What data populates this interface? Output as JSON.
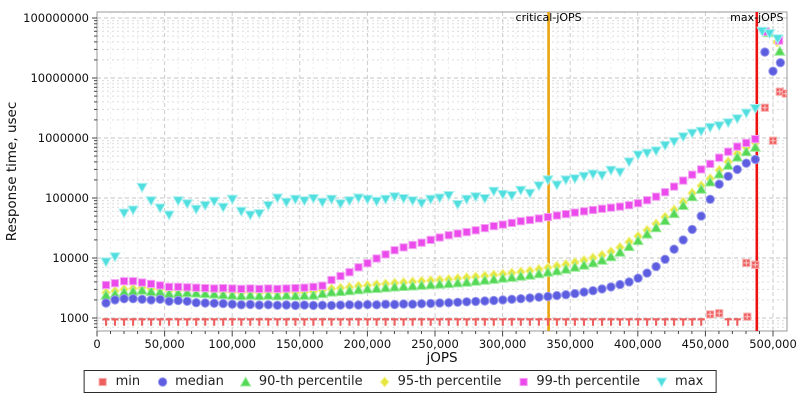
{
  "chart_data": {
    "type": "scatter",
    "title": "",
    "xlabel": "jOPS",
    "ylabel": "Response time, usec",
    "x_axis": {
      "min": 0,
      "max": 510000,
      "major_tick_step": 50000,
      "minor_tick_step": 10000,
      "tick_values": [
        0,
        50000,
        100000,
        150000,
        200000,
        250000,
        300000,
        350000,
        400000,
        450000,
        500000
      ],
      "tick_labels": [
        "0",
        "50,000",
        "100,000",
        "150,000",
        "200,000",
        "250,000",
        "300,000",
        "350,000",
        "400,000",
        "450,000",
        "500,000"
      ]
    },
    "y_axis": {
      "scale": "log",
      "min": 600,
      "max": 126000000,
      "tick_values": [
        1000,
        10000,
        100000,
        1000000,
        10000000,
        100000000
      ],
      "tick_labels": [
        "1000",
        "10000",
        "100000",
        "1000000",
        "10000000",
        "100000000"
      ]
    },
    "grid": true,
    "legend_position": "bottom",
    "annotations": [
      {
        "label": "critical-jOPS",
        "x": 334000,
        "color": "#eaa40f"
      },
      {
        "label": "max-jOPS",
        "x": 488000,
        "color": "#ee1111"
      }
    ],
    "x": [
      6670,
      13340,
      20010,
      26680,
      33350,
      40020,
      46690,
      53360,
      60030,
      66700,
      73370,
      80040,
      86710,
      93380,
      100050,
      106720,
      113390,
      120060,
      126730,
      133400,
      140070,
      146740,
      153410,
      160080,
      166750,
      173420,
      180090,
      186760,
      193430,
      200100,
      206770,
      213440,
      220110,
      226780,
      233450,
      240120,
      246790,
      253460,
      260130,
      266800,
      273470,
      280140,
      286810,
      293480,
      300150,
      306820,
      313490,
      320160,
      326830,
      333500,
      340170,
      346840,
      353510,
      360180,
      366850,
      373520,
      380190,
      386860,
      393530,
      400200,
      406870,
      413540,
      420210,
      426880,
      433550,
      440220,
      446890,
      453560,
      460230,
      466900,
      473570,
      480240,
      486910
    ],
    "series": [
      {
        "name": "min",
        "marker": "square",
        "color": "#ee5f5f",
        "edge": "#f8b0b0",
        "values": [
          950,
          950,
          950,
          950,
          950,
          950,
          950,
          950,
          950,
          950,
          950,
          950,
          950,
          950,
          950,
          950,
          950,
          950,
          950,
          950,
          950,
          950,
          950,
          950,
          950,
          950,
          950,
          950,
          950,
          950,
          950,
          950,
          950,
          950,
          950,
          950,
          950,
          950,
          950,
          950,
          950,
          950,
          950,
          950,
          950,
          950,
          950,
          950,
          950,
          950,
          950,
          950,
          950,
          950,
          950,
          950,
          950,
          950,
          950,
          950,
          950,
          950,
          950,
          950,
          950,
          950,
          950,
          1150,
          1200,
          950,
          950,
          8300,
          7700
        ],
        "extra": [
          [
            481000,
            1050
          ],
          [
            494000,
            3200000
          ],
          [
            500000,
            900000
          ],
          [
            505000,
            5900000
          ],
          [
            509500,
            5500000
          ]
        ]
      },
      {
        "name": "median",
        "marker": "circle",
        "color": "#5d5de0",
        "edge": "#9a9af0",
        "values": [
          1780,
          2000,
          2100,
          2100,
          2050,
          2000,
          2050,
          1900,
          1950,
          1900,
          1800,
          1780,
          1760,
          1740,
          1700,
          1660,
          1680,
          1640,
          1660,
          1630,
          1650,
          1620,
          1640,
          1620,
          1630,
          1620,
          1640,
          1660,
          1650,
          1670,
          1660,
          1690,
          1680,
          1710,
          1700,
          1730,
          1750,
          1780,
          1800,
          1830,
          1860,
          1890,
          1920,
          1960,
          2000,
          2050,
          2100,
          2160,
          2220,
          2280,
          2360,
          2450,
          2550,
          2700,
          2850,
          3050,
          3300,
          3600,
          4000,
          4600,
          5600,
          7200,
          9500,
          14000,
          20000,
          30000,
          50000,
          95000,
          170000,
          230000,
          300000,
          380000,
          440000
        ],
        "extra": [
          [
            494000,
            27000000
          ],
          [
            500000,
            13000000
          ],
          [
            505500,
            18000000
          ]
        ]
      },
      {
        "name": "90-th percentile",
        "marker": "triangle-up",
        "color": "#55d855",
        "edge": "#9aeb9a",
        "values": [
          2400,
          2500,
          2700,
          2800,
          2900,
          2750,
          2700,
          2550,
          2600,
          2650,
          2600,
          2550,
          2500,
          2450,
          2400,
          2350,
          2400,
          2350,
          2400,
          2350,
          2400,
          2350,
          2380,
          2400,
          2550,
          2700,
          2750,
          2850,
          2950,
          3050,
          3100,
          3200,
          3280,
          3350,
          3420,
          3500,
          3580,
          3660,
          3750,
          3850,
          3950,
          4100,
          4250,
          4400,
          4600,
          4750,
          4950,
          5150,
          5450,
          5800,
          6100,
          6500,
          7000,
          7600,
          8300,
          9200,
          10500,
          12500,
          15500,
          19500,
          25000,
          32000,
          42000,
          55000,
          75000,
          105000,
          140000,
          185000,
          250000,
          350000,
          480000,
          590000,
          700000
        ],
        "extra": [
          [
            497000,
            57000000
          ],
          [
            505000,
            28000000
          ]
        ]
      },
      {
        "name": "95-th percentile",
        "marker": "diamond",
        "color": "#e6e63e",
        "edge": "#f4f49a",
        "values": [
          2650,
          2800,
          3000,
          3100,
          3200,
          3050,
          3000,
          2850,
          2900,
          2950,
          2900,
          2850,
          2800,
          2750,
          2700,
          2650,
          2700,
          2650,
          2700,
          2650,
          2700,
          2650,
          2700,
          2750,
          2900,
          3050,
          3150,
          3250,
          3400,
          3500,
          3600,
          3700,
          3800,
          3900,
          4000,
          4100,
          4200,
          4300,
          4400,
          4550,
          4700,
          4850,
          5000,
          5200,
          5400,
          5600,
          5850,
          6100,
          6450,
          6900,
          7300,
          7800,
          8400,
          9100,
          10000,
          11100,
          12700,
          15000,
          18500,
          23000,
          29000,
          37000,
          48000,
          63000,
          85000,
          120000,
          160000,
          210000,
          290000,
          400000,
          550000,
          700000,
          830000
        ],
        "extra": [
          [
            503000,
            40000000
          ]
        ]
      },
      {
        "name": "99-th percentile",
        "marker": "square",
        "color": "#ea4bea",
        "edge": "#f6a0f6",
        "values": [
          3550,
          3800,
          4100,
          4100,
          3900,
          3700,
          3500,
          3300,
          3300,
          3250,
          3200,
          3150,
          3100,
          3150,
          3100,
          3050,
          3100,
          3050,
          3100,
          3050,
          3100,
          3150,
          3200,
          3300,
          3450,
          4300,
          5000,
          5800,
          7000,
          8200,
          9800,
          11500,
          13500,
          15000,
          16500,
          18000,
          20000,
          22000,
          24000,
          25500,
          27000,
          29000,
          31500,
          34000,
          36000,
          38500,
          41000,
          43000,
          45500,
          48000,
          51000,
          54000,
          57000,
          60000,
          63000,
          66000,
          69000,
          72000,
          76000,
          82000,
          92000,
          105000,
          125000,
          155000,
          195000,
          245000,
          300000,
          370000,
          470000,
          590000,
          720000,
          830000,
          960000
        ],
        "extra": [
          [
            494500,
            59000000
          ],
          [
            504500,
            42000000
          ]
        ]
      },
      {
        "name": "max",
        "marker": "triangle-down",
        "color": "#50dede",
        "edge": "#a8f0f0",
        "values": [
          8600,
          10500,
          56000,
          63000,
          150000,
          90000,
          68000,
          52000,
          90000,
          80000,
          65000,
          75000,
          88000,
          70000,
          95000,
          60000,
          52000,
          55000,
          75000,
          100000,
          85000,
          95000,
          90000,
          98000,
          85000,
          95000,
          80000,
          90000,
          100000,
          95000,
          88000,
          95000,
          105000,
          98000,
          90000,
          82000,
          95000,
          100000,
          110000,
          78000,
          95000,
          105000,
          98000,
          130000,
          115000,
          110000,
          135000,
          120000,
          160000,
          200000,
          165000,
          200000,
          210000,
          230000,
          250000,
          240000,
          290000,
          270000,
          400000,
          520000,
          560000,
          610000,
          750000,
          870000,
          1050000,
          1200000,
          1300000,
          1500000,
          1600000,
          1800000,
          2100000,
          2600000,
          3100000
        ],
        "extra": [
          [
            492000,
            60000000
          ],
          [
            497500,
            55000000
          ],
          [
            503500,
            45000000
          ]
        ]
      }
    ]
  }
}
